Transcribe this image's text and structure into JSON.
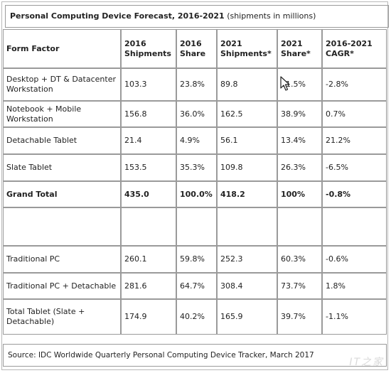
{
  "title": {
    "main": "Personal Computing Device Forecast, 2016-2021",
    "sub": "(shipments in millions)"
  },
  "table": {
    "headers": [
      "Form Factor",
      "2016 Shipments",
      "2016 Share",
      "2021 Shipments*",
      "2021 Share*",
      "2016-2021 CAGR*"
    ],
    "rows": [
      [
        "Desktop + DT & Datacenter Workstation",
        "103.3",
        "23.8%",
        "89.8",
        "21.5%",
        "-2.8%"
      ],
      [
        "Notebook + Mobile Workstation",
        "156.8",
        "36.0%",
        "162.5",
        "38.9%",
        "0.7%"
      ],
      [
        "Detachable Tablet",
        "21.4",
        "4.9%",
        "56.1",
        "13.4%",
        "21.2%"
      ],
      [
        "Slate Tablet",
        "153.5",
        "35.3%",
        "109.8",
        "26.3%",
        "-6.5%"
      ],
      [
        "Grand Total",
        "435.0",
        "100.0%",
        "418.2",
        "100%",
        "-0.8%"
      ],
      [
        "",
        "",
        "",
        "",
        "",
        ""
      ],
      [
        "Traditional PC",
        "260.1",
        "59.8%",
        "252.3",
        "60.3%",
        "-0.6%"
      ],
      [
        "Traditional PC + Detachable",
        "281.6",
        "64.7%",
        "308.4",
        "73.7%",
        "1.8%"
      ],
      [
        "Total Tablet (Slate + Detachable)",
        "174.9",
        "40.2%",
        "165.9",
        "39.7%",
        "-1.1%"
      ]
    ]
  },
  "source": "Source: IDC Worldwide Quarterly Personal Computing Device Tracker, March 2017",
  "watermark": "IT之家"
}
